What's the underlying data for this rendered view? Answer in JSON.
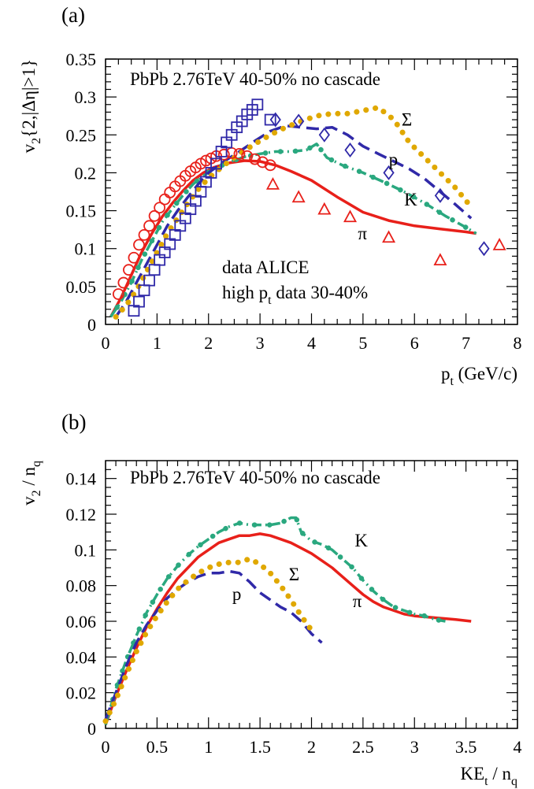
{
  "colors": {
    "pion": "#e8201a",
    "kaon": "#2aa87f",
    "proton": "#3029a8",
    "sigma": "#e0a800",
    "data_pion": "#e8201a",
    "data_kaon": "#3029a8",
    "data_proton": "#3029a8"
  },
  "chart_data": [
    {
      "type": "line",
      "panel_label": "(a)",
      "title": "PbPb  2.76TeV  40-50%  no cascade",
      "xlabel": "p_t (GeV/c)",
      "xlabel_main": "p",
      "xlabel_sub": "t",
      "xlabel_tail": " (GeV/c)",
      "ylabel": "v_2{2,|Δη|>1}",
      "ylabel_main": "v",
      "ylabel_sub": "2",
      "ylabel_tail": "{2,|Δη|>1}",
      "xlim": [
        0,
        8
      ],
      "ylim": [
        0,
        0.35
      ],
      "x_ticks": [
        "0",
        "1",
        "2",
        "3",
        "4",
        "5",
        "6",
        "7",
        "8"
      ],
      "y_ticks": [
        "0",
        "0.05",
        "0.1",
        "0.15",
        "0.2",
        "0.25",
        "0.3",
        "0.35"
      ],
      "annotations": [
        "data ALICE"
      ],
      "annotation2_main": "high p",
      "annotation2_sub": "t",
      "annotation2_tail": " data 30-40%",
      "series": [
        {
          "name": "π",
          "style": "solid",
          "color_key": "pion",
          "label_at": [
            4.9,
            0.112
          ],
          "x": [
            0.1,
            0.3,
            0.5,
            0.7,
            0.9,
            1.1,
            1.3,
            1.5,
            1.7,
            1.9,
            2.1,
            2.4,
            2.7,
            3.0,
            3.3,
            3.6,
            4.0,
            4.5,
            5.0,
            5.5,
            6.0,
            6.5,
            7.0,
            7.2
          ],
          "y": [
            0.01,
            0.035,
            0.065,
            0.095,
            0.12,
            0.142,
            0.16,
            0.176,
            0.19,
            0.2,
            0.207,
            0.213,
            0.216,
            0.215,
            0.21,
            0.202,
            0.19,
            0.168,
            0.148,
            0.137,
            0.13,
            0.126,
            0.122,
            0.12
          ]
        },
        {
          "name": "K",
          "style": "dash-dot",
          "color_key": "kaon",
          "label_at": [
            5.8,
            0.157
          ],
          "x": [
            0.1,
            0.3,
            0.5,
            0.7,
            0.9,
            1.1,
            1.3,
            1.5,
            1.7,
            1.9,
            2.1,
            2.4,
            2.7,
            3.0,
            3.3,
            3.6,
            3.9,
            4.1,
            4.3,
            4.6,
            5.0,
            5.4,
            5.8,
            6.2,
            6.6,
            7.0,
            7.2
          ],
          "y": [
            0.01,
            0.03,
            0.055,
            0.085,
            0.11,
            0.135,
            0.153,
            0.17,
            0.185,
            0.196,
            0.205,
            0.214,
            0.221,
            0.225,
            0.228,
            0.228,
            0.23,
            0.238,
            0.22,
            0.21,
            0.2,
            0.188,
            0.175,
            0.16,
            0.143,
            0.128,
            0.12
          ]
        },
        {
          "name": "p",
          "style": "dashed",
          "color_key": "proton",
          "label_at": [
            5.5,
            0.21
          ],
          "x": [
            0.2,
            0.4,
            0.6,
            0.8,
            1.0,
            1.2,
            1.4,
            1.6,
            1.8,
            2.0,
            2.3,
            2.6,
            2.9,
            3.2,
            3.5,
            3.8,
            4.1,
            4.4,
            4.7,
            5.0,
            5.3,
            5.6,
            5.9,
            6.2,
            6.5,
            6.8,
            7.1
          ],
          "y": [
            0.01,
            0.03,
            0.055,
            0.08,
            0.105,
            0.13,
            0.15,
            0.168,
            0.185,
            0.2,
            0.215,
            0.228,
            0.242,
            0.255,
            0.262,
            0.26,
            0.258,
            0.26,
            0.25,
            0.235,
            0.225,
            0.215,
            0.205,
            0.192,
            0.175,
            0.158,
            0.14
          ]
        },
        {
          "name": "Σ",
          "style": "dotted",
          "color_key": "sigma",
          "label_at": [
            5.75,
            0.262
          ],
          "x": [
            0.2,
            0.4,
            0.6,
            0.8,
            1.0,
            1.2,
            1.4,
            1.6,
            1.8,
            2.0,
            2.3,
            2.6,
            2.9,
            3.2,
            3.5,
            3.8,
            4.1,
            4.4,
            4.7,
            5.0,
            5.3,
            5.6,
            5.9,
            6.2,
            6.5,
            6.8,
            7.1
          ],
          "y": [
            0.01,
            0.025,
            0.045,
            0.07,
            0.095,
            0.12,
            0.14,
            0.16,
            0.178,
            0.193,
            0.21,
            0.225,
            0.238,
            0.25,
            0.26,
            0.268,
            0.275,
            0.278,
            0.278,
            0.282,
            0.286,
            0.27,
            0.24,
            0.22,
            0.2,
            0.18,
            0.155
          ]
        }
      ],
      "scatter_series": [
        {
          "marker": "circle",
          "color_key": "data_pion",
          "x": [
            0.25,
            0.35,
            0.45,
            0.55,
            0.65,
            0.75,
            0.85,
            0.95,
            1.05,
            1.15,
            1.25,
            1.35,
            1.45,
            1.55,
            1.65,
            1.75,
            1.85,
            1.95,
            2.05,
            2.15,
            2.3,
            2.45,
            2.6,
            2.75,
            2.9,
            3.05,
            3.2
          ],
          "y": [
            0.04,
            0.055,
            0.072,
            0.088,
            0.105,
            0.118,
            0.13,
            0.143,
            0.154,
            0.165,
            0.174,
            0.182,
            0.189,
            0.196,
            0.202,
            0.207,
            0.212,
            0.216,
            0.219,
            0.222,
            0.224,
            0.226,
            0.225,
            0.222,
            0.218,
            0.214,
            0.21
          ]
        },
        {
          "marker": "square",
          "color_key": "data_kaon",
          "x": [
            0.55,
            0.65,
            0.75,
            0.85,
            0.95,
            1.05,
            1.15,
            1.25,
            1.35,
            1.45,
            1.55,
            1.65,
            1.75,
            1.85,
            1.95,
            2.05,
            2.15,
            2.25,
            2.35,
            2.45,
            2.55,
            2.65,
            2.75,
            2.85,
            2.95,
            3.2
          ],
          "y": [
            0.018,
            0.03,
            0.045,
            0.058,
            0.072,
            0.085,
            0.095,
            0.106,
            0.118,
            0.13,
            0.14,
            0.152,
            0.163,
            0.175,
            0.188,
            0.2,
            0.212,
            0.228,
            0.24,
            0.25,
            0.26,
            0.268,
            0.277,
            0.283,
            0.29,
            0.27
          ]
        },
        {
          "marker": "diamond",
          "color_key": "data_proton",
          "x": [
            3.3,
            3.75,
            4.25,
            4.75,
            5.5,
            6.5,
            7.35
          ],
          "y": [
            0.27,
            0.268,
            0.25,
            0.23,
            0.2,
            0.17,
            0.1
          ]
        },
        {
          "marker": "triangle",
          "color_key": "data_pion",
          "x": [
            3.25,
            3.75,
            4.25,
            4.75,
            5.5,
            6.5,
            7.65
          ],
          "y": [
            0.185,
            0.168,
            0.152,
            0.142,
            0.115,
            0.085,
            0.105
          ]
        }
      ]
    },
    {
      "type": "line",
      "panel_label": "(b)",
      "title": "PbPb  2.76TeV 40-50%   no cascade",
      "xlabel": "KE_t / n_q",
      "xlabel_main": "KE",
      "xlabel_sub": "t",
      "xlabel_mid": " / n",
      "xlabel_sub2": "q",
      "ylabel": "v_2 / n_q",
      "ylabel_main": "v",
      "ylabel_sub": "2",
      "ylabel_mid": " / n",
      "ylabel_sub2": "q",
      "xlim": [
        0,
        4
      ],
      "ylim": [
        0,
        0.15
      ],
      "x_ticks": [
        "0",
        "0.5",
        "1",
        "1.5",
        "2",
        "2.5",
        "3",
        "3.5",
        "4"
      ],
      "y_ticks": [
        "0",
        "0.02",
        "0.04",
        "0.06",
        "0.08",
        "0.1",
        "0.12",
        "0.14"
      ],
      "series": [
        {
          "name": "π",
          "style": "solid",
          "color_key": "pion",
          "label_at": [
            2.4,
            0.068
          ],
          "x": [
            0.0,
            0.05,
            0.1,
            0.2,
            0.3,
            0.4,
            0.5,
            0.6,
            0.7,
            0.8,
            0.9,
            1.0,
            1.1,
            1.2,
            1.3,
            1.4,
            1.5,
            1.6,
            1.7,
            1.8,
            1.9,
            2.0,
            2.1,
            2.2,
            2.3,
            2.4,
            2.5,
            2.6,
            2.7,
            2.8,
            2.9,
            3.0,
            3.2,
            3.4,
            3.55
          ],
          "y": [
            0.002,
            0.01,
            0.018,
            0.032,
            0.045,
            0.057,
            0.067,
            0.076,
            0.084,
            0.09,
            0.096,
            0.1,
            0.104,
            0.106,
            0.108,
            0.108,
            0.109,
            0.108,
            0.106,
            0.104,
            0.101,
            0.098,
            0.094,
            0.09,
            0.085,
            0.08,
            0.075,
            0.071,
            0.068,
            0.066,
            0.064,
            0.063,
            0.062,
            0.061,
            0.06
          ]
        },
        {
          "name": "K",
          "style": "dash-dot",
          "color_key": "kaon",
          "label_at": [
            2.42,
            0.102
          ],
          "x": [
            0.0,
            0.05,
            0.1,
            0.2,
            0.3,
            0.4,
            0.5,
            0.6,
            0.7,
            0.8,
            0.9,
            1.0,
            1.1,
            1.2,
            1.3,
            1.4,
            1.5,
            1.6,
            1.7,
            1.8,
            1.85,
            1.9,
            2.0,
            2.1,
            2.2,
            2.3,
            2.4,
            2.5,
            2.6,
            2.7,
            2.8,
            2.9,
            3.0,
            3.1,
            3.2,
            3.3
          ],
          "y": [
            0.002,
            0.012,
            0.022,
            0.038,
            0.052,
            0.065,
            0.075,
            0.084,
            0.091,
            0.097,
            0.102,
            0.106,
            0.11,
            0.113,
            0.115,
            0.114,
            0.114,
            0.114,
            0.115,
            0.118,
            0.118,
            0.11,
            0.105,
            0.103,
            0.1,
            0.095,
            0.09,
            0.083,
            0.077,
            0.072,
            0.068,
            0.066,
            0.064,
            0.063,
            0.061,
            0.06
          ]
        },
        {
          "name": "p",
          "style": "dashed",
          "color_key": "proton",
          "label_at": [
            1.23,
            0.072
          ],
          "x": [
            0.0,
            0.1,
            0.2,
            0.3,
            0.4,
            0.5,
            0.6,
            0.7,
            0.8,
            0.9,
            1.0,
            1.1,
            1.2,
            1.3,
            1.4,
            1.5,
            1.6,
            1.7,
            1.8,
            1.9,
            2.0,
            2.1
          ],
          "y": [
            0.005,
            0.02,
            0.035,
            0.048,
            0.058,
            0.066,
            0.073,
            0.078,
            0.082,
            0.085,
            0.087,
            0.087,
            0.088,
            0.087,
            0.082,
            0.076,
            0.072,
            0.068,
            0.065,
            0.06,
            0.053,
            0.048
          ]
        },
        {
          "name": "Σ",
          "style": "dotted",
          "color_key": "sigma",
          "label_at": [
            1.78,
            0.083
          ],
          "x": [
            0.0,
            0.1,
            0.2,
            0.3,
            0.4,
            0.5,
            0.6,
            0.7,
            0.8,
            0.9,
            1.0,
            1.1,
            1.2,
            1.3,
            1.4,
            1.5,
            1.6,
            1.7,
            1.8,
            1.9,
            2.0
          ],
          "y": [
            0.004,
            0.016,
            0.03,
            0.043,
            0.054,
            0.063,
            0.071,
            0.078,
            0.083,
            0.087,
            0.09,
            0.092,
            0.093,
            0.093,
            0.095,
            0.092,
            0.087,
            0.08,
            0.072,
            0.063,
            0.055
          ]
        }
      ],
      "scatter_series": []
    }
  ]
}
